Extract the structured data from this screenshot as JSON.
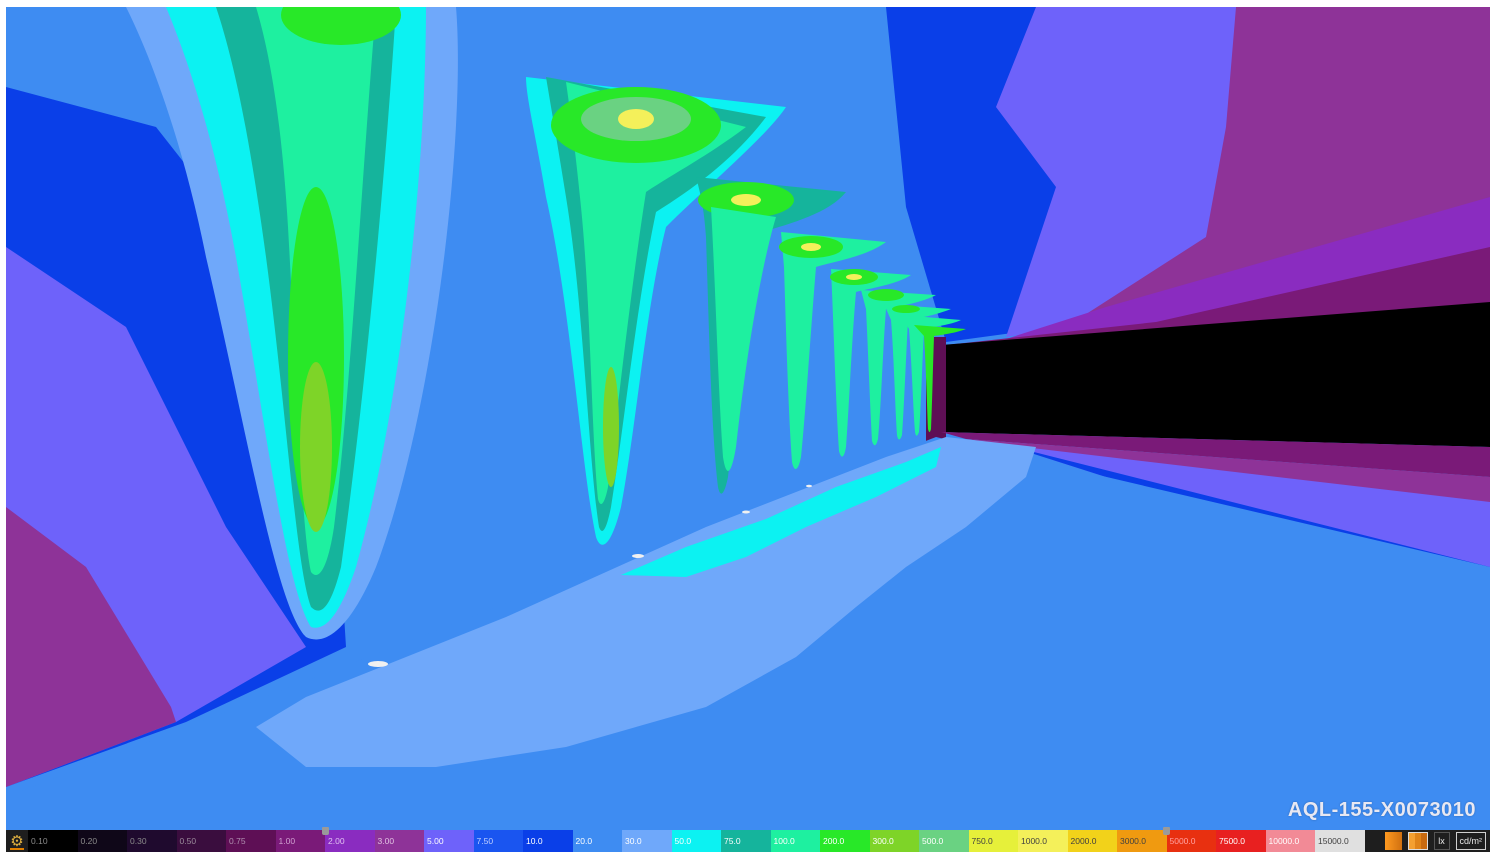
{
  "view": {
    "label": "AQL-155-X0073010"
  },
  "legend": {
    "steps": [
      {
        "value": "0.10",
        "color": "#000000",
        "text_color": "#8a8a8a"
      },
      {
        "value": "0.20",
        "color": "#0f0718",
        "text_color": "#8a8a8a"
      },
      {
        "value": "0.30",
        "color": "#1f0a2e",
        "text_color": "#8a8a8a"
      },
      {
        "value": "0.50",
        "color": "#3a0d3e",
        "text_color": "#9a8a9a"
      },
      {
        "value": "0.75",
        "color": "#5e0f55",
        "text_color": "#b090b0"
      },
      {
        "value": "1.00",
        "color": "#7a1a78",
        "text_color": "#d0a0d0"
      },
      {
        "value": "2.00",
        "color": "#8a2cc0",
        "text_color": "#e0c0f0"
      },
      {
        "value": "3.00",
        "color": "#8e3398",
        "text_color": "#e0c0e0"
      },
      {
        "value": "5.00",
        "color": "#6e62fa",
        "text_color": "#ffffff"
      },
      {
        "value": "7.50",
        "color": "#1a55f0",
        "text_color": "#c0d0ff"
      },
      {
        "value": "10.0",
        "color": "#0a3fe8",
        "text_color": "#ffffff"
      },
      {
        "value": "20.0",
        "color": "#3e8cf2",
        "text_color": "#ffffff"
      },
      {
        "value": "30.0",
        "color": "#6fa8fa",
        "text_color": "#ffffff"
      },
      {
        "value": "50.0",
        "color": "#0cf2f2",
        "text_color": "#ffffff"
      },
      {
        "value": "75.0",
        "color": "#15b49c",
        "text_color": "#ffffff"
      },
      {
        "value": "100.0",
        "color": "#1ef0a0",
        "text_color": "#ffffff"
      },
      {
        "value": "200.0",
        "color": "#28e828",
        "text_color": "#ffffff"
      },
      {
        "value": "300.0",
        "color": "#7ed428",
        "text_color": "#ffffff"
      },
      {
        "value": "500.0",
        "color": "#6ad282",
        "text_color": "#ffffff"
      },
      {
        "value": "750.0",
        "color": "#e6f03a",
        "text_color": "#404040"
      },
      {
        "value": "1000.0",
        "color": "#f4f05a",
        "text_color": "#404040"
      },
      {
        "value": "2000.0",
        "color": "#f2d21a",
        "text_color": "#404040"
      },
      {
        "value": "3000.0",
        "color": "#f09a10",
        "text_color": "#404040"
      },
      {
        "value": "5000.0",
        "color": "#e83010",
        "text_color": "#ffa0a0"
      },
      {
        "value": "7500.0",
        "color": "#e82020",
        "text_color": "#ffffff"
      },
      {
        "value": "10000.0",
        "color": "#f28a96",
        "text_color": "#ffffff"
      },
      {
        "value": "15000.0",
        "color": "#e0e0e0",
        "text_color": "#404040"
      }
    ],
    "lower_handle_value": "1.00",
    "upper_handle_value": "3000.0",
    "units": [
      {
        "label": "lx",
        "active": false
      },
      {
        "label": "cd/m²",
        "active": true
      }
    ]
  }
}
